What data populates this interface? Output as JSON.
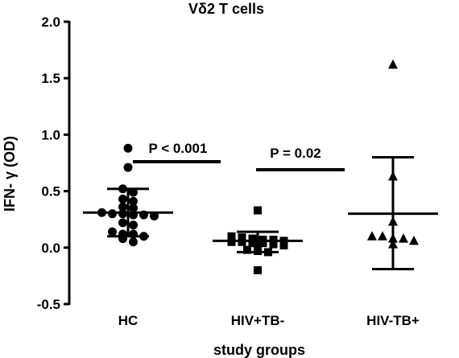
{
  "chart_data": {
    "type": "scatter",
    "title": "Vδ2 T cells",
    "xlabel": "study groups",
    "ylabel": "IFN- γ (OD)",
    "ylim": [
      -0.5,
      2.0
    ],
    "yticks": [
      "2.0",
      "1.5",
      "1.0",
      "0.5",
      "0.0",
      "-0.5"
    ],
    "categories": [
      "HC",
      "HIV+TB-",
      "HIV-TB+"
    ],
    "grid": false,
    "groups": [
      {
        "label": "HC",
        "marker": "circle",
        "mean": 0.31,
        "error_high": 0.52,
        "error_low": 0.1,
        "points": [
          0.88,
          0.71,
          0.52,
          0.49,
          0.43,
          0.41,
          0.36,
          0.35,
          0.31,
          0.3,
          0.3,
          0.29,
          0.29,
          0.28,
          0.22,
          0.2,
          0.14,
          0.12,
          0.12,
          0.1,
          0.08,
          0.05
        ]
      },
      {
        "label": "HIV+TB-",
        "marker": "square",
        "mean": 0.06,
        "error_high": 0.14,
        "error_low": -0.04,
        "points": [
          0.33,
          0.1,
          0.09,
          0.08,
          0.07,
          0.07,
          0.06,
          0.05,
          0.05,
          0.04,
          0.04,
          0.03,
          0.02,
          -0.02,
          -0.03,
          -0.04,
          -0.2
        ]
      },
      {
        "label": "HIV-TB+",
        "marker": "triangle",
        "mean": 0.3,
        "error_high": 0.8,
        "error_low": -0.19,
        "points": [
          1.62,
          0.63,
          0.23,
          0.1,
          0.1,
          0.08,
          0.08,
          0.06,
          0.03
        ]
      }
    ],
    "annotations": [
      {
        "text": "P < 0.001",
        "between": [
          "HC",
          "HIV+TB-"
        ]
      },
      {
        "text": "P = 0.02",
        "between": [
          "HIV+TB-",
          "HIV-TB+"
        ]
      }
    ]
  }
}
